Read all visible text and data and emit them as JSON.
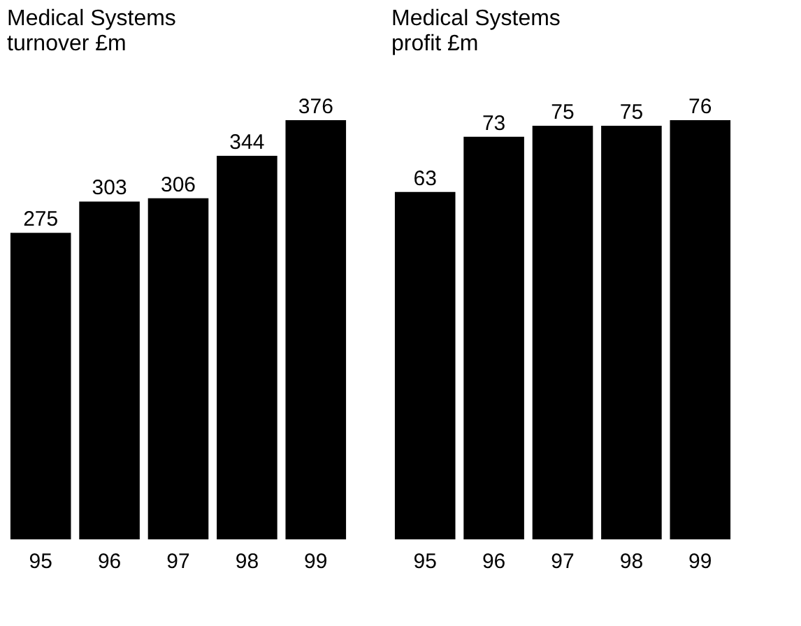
{
  "chart_data": [
    {
      "type": "bar",
      "title": "Medical Systems\nturnover £m",
      "categories": [
        "95",
        "96",
        "97",
        "98",
        "99"
      ],
      "values": [
        275,
        303,
        306,
        344,
        376
      ],
      "color": "#000000",
      "data_labels": true
    },
    {
      "type": "bar",
      "title": "Medical Systems\nprofit £m",
      "categories": [
        "95",
        "96",
        "97",
        "98",
        "99"
      ],
      "values": [
        63,
        73,
        75,
        75,
        76
      ],
      "color": "#000000",
      "data_labels": true
    }
  ]
}
